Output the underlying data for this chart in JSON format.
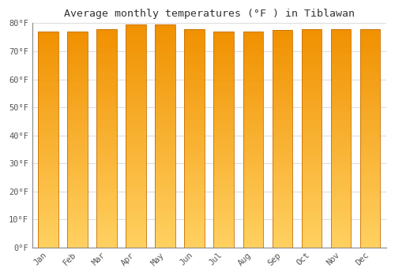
{
  "title": "Average monthly temperatures (°F ) in Tiblawan",
  "months": [
    "Jan",
    "Feb",
    "Mar",
    "Apr",
    "May",
    "Jun",
    "Jul",
    "Aug",
    "Sep",
    "Oct",
    "Nov",
    "Dec"
  ],
  "values": [
    77.0,
    77.0,
    78.0,
    79.5,
    79.5,
    78.0,
    77.0,
    77.0,
    77.5,
    78.0,
    78.0,
    78.0
  ],
  "ylim": [
    0,
    80
  ],
  "yticks": [
    0,
    10,
    20,
    30,
    40,
    50,
    60,
    70,
    80
  ],
  "background_color": "#FFFFFF",
  "plot_bg_color": "#FFFFFF",
  "grid_color": "#DDDDDD",
  "bar_center_color": "#FFD050",
  "bar_edge_color": "#F0A000",
  "bar_border_color": "#C87000",
  "title_fontsize": 9.5,
  "tick_fontsize": 7.5,
  "bar_width": 0.7
}
